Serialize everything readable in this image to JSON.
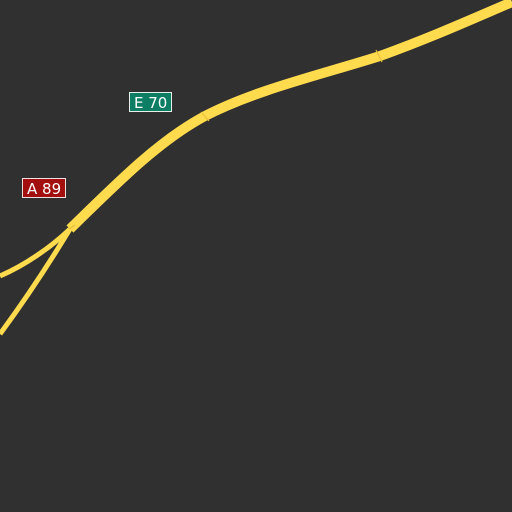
{
  "map": {
    "background_color": "#303030",
    "road_color": "#ffdb4d",
    "road_casing_color": "#e8bf3a"
  },
  "shields": {
    "e_route": {
      "label": "E 70",
      "color": "#0d7d63"
    },
    "a_route": {
      "label": "A 89",
      "color": "#a30f0f"
    }
  }
}
